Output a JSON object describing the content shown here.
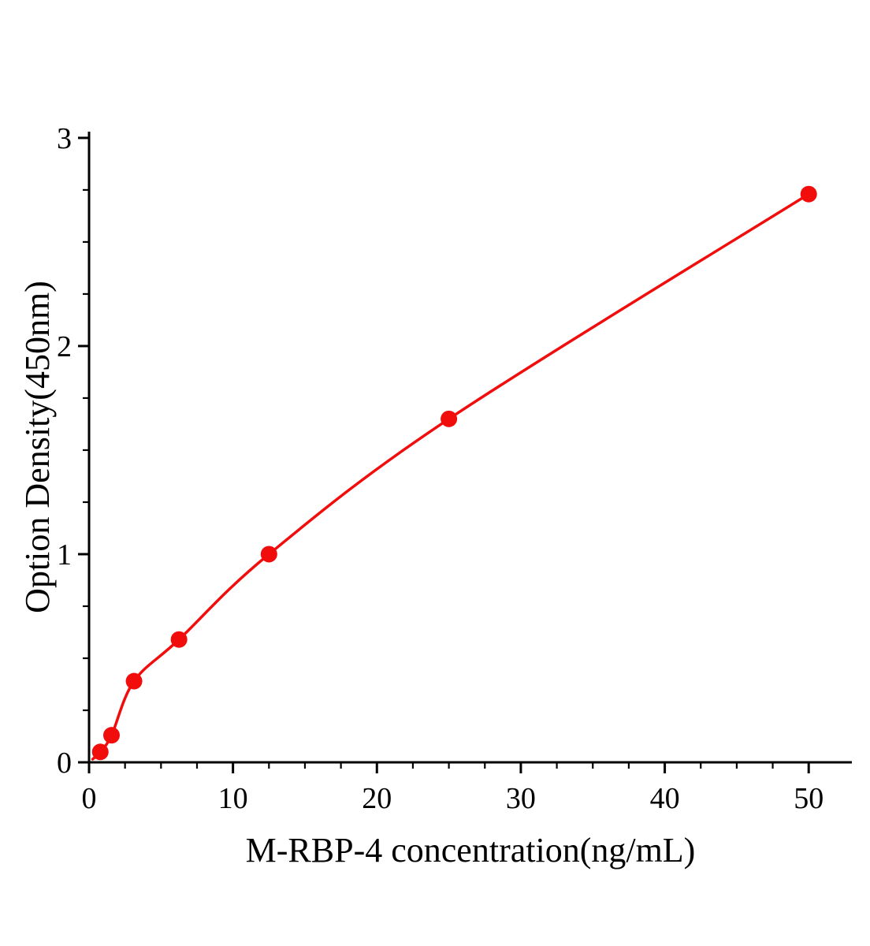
{
  "chart_data": {
    "type": "scatter",
    "title": "",
    "xlabel": "M-RBP-4 concentration(ng/mL)",
    "ylabel": "Option Density(450nm)",
    "x": [
      0.78,
      1.56,
      3.125,
      6.25,
      12.5,
      25,
      50
    ],
    "y": [
      0.05,
      0.13,
      0.39,
      0.59,
      1.0,
      1.65,
      2.73
    ],
    "curve_start": {
      "x": 0.25,
      "y": 0.015
    },
    "xlim": [
      0,
      53
    ],
    "ylim": [
      0,
      3.03
    ],
    "x_major_ticks": [
      0,
      10,
      20,
      30,
      40,
      50
    ],
    "x_minor_step": 2.5,
    "y_major_ticks": [
      0,
      1,
      2,
      3
    ],
    "y_minor_step": 0.25,
    "line_color": "#f20d0d",
    "marker_color": "#f20d0d",
    "axis_color": "#000000",
    "grid": false,
    "legend": null
  }
}
